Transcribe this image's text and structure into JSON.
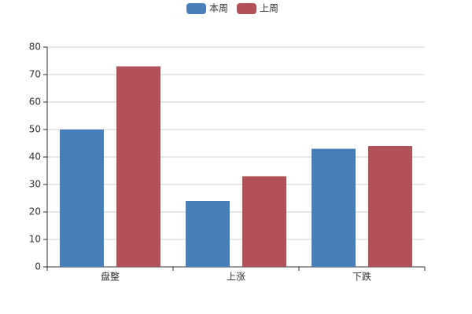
{
  "chart_data": {
    "type": "bar",
    "legend": "top",
    "categories": [
      "盘整",
      "上涨",
      "下跌"
    ],
    "series": [
      {
        "name": "本周",
        "color": "#4a7ebb",
        "values": [
          50,
          24,
          43
        ]
      },
      {
        "name": "上周",
        "color": "#b05257",
        "values": [
          73,
          33,
          44
        ]
      }
    ],
    "ylim": [
      0,
      80
    ],
    "yticks": [
      0,
      10,
      20,
      30,
      40,
      50,
      60,
      70,
      80
    ],
    "grid": true
  }
}
